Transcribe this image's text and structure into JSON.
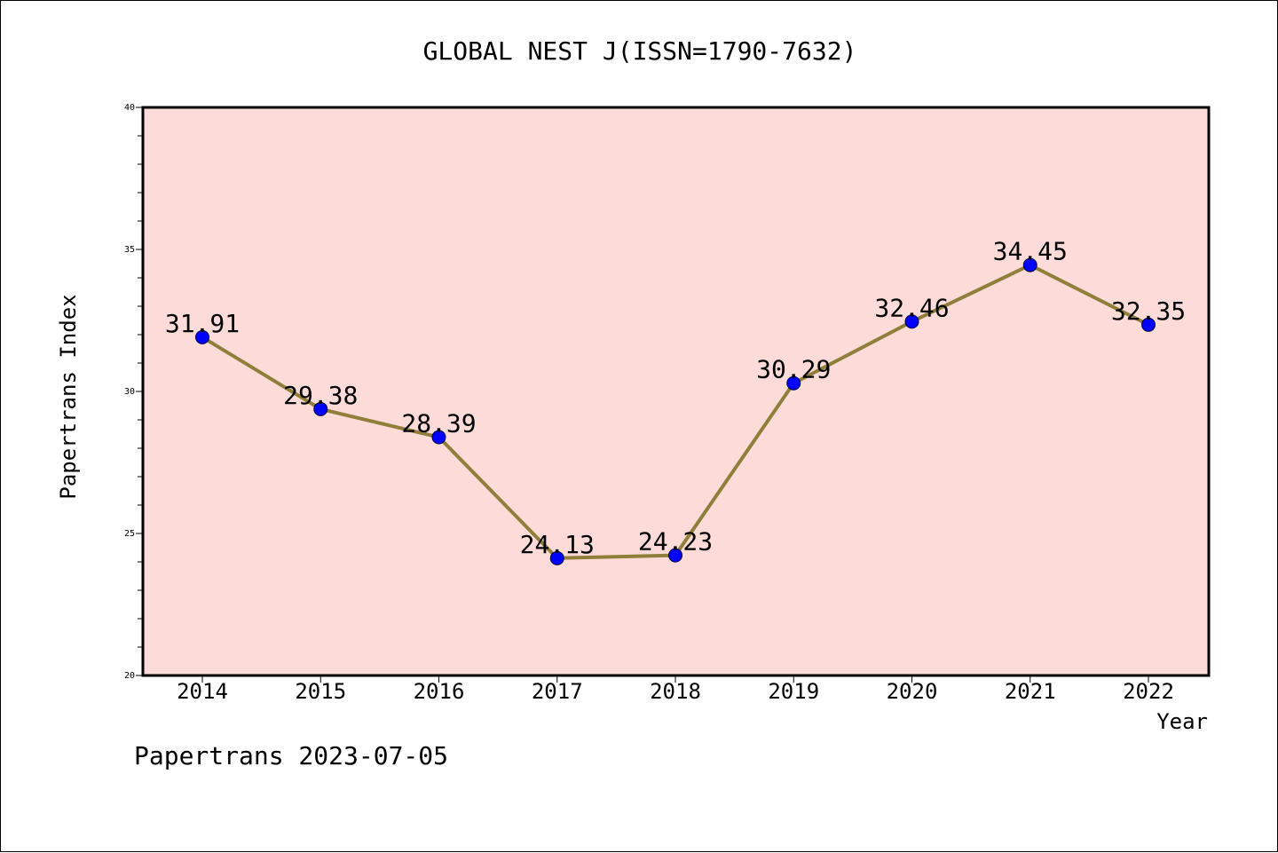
{
  "chart_data": {
    "type": "line",
    "title": "GLOBAL NEST J(ISSN=1790-7632)",
    "xlabel": "Year",
    "ylabel": "Papertrans Index",
    "categories": [
      "2014",
      "2015",
      "2016",
      "2017",
      "2018",
      "2019",
      "2020",
      "2021",
      "2022"
    ],
    "values": [
      31.91,
      29.38,
      28.39,
      24.13,
      24.23,
      30.29,
      32.46,
      34.45,
      32.35
    ],
    "value_labels": [
      "31.91",
      "29.38",
      "28.39",
      "24.13",
      "24.23",
      "30.29",
      "32.46",
      "34.45",
      "32.35"
    ],
    "ylim": [
      20,
      40
    ],
    "y_ticks": [
      "20",
      "25",
      "30",
      "35",
      "40"
    ],
    "grid": false,
    "legend": "none",
    "colors": {
      "plot_background": "#fddbd8",
      "line": "#8f7f3a",
      "marker": "#0000ff",
      "axis": "#000000"
    }
  },
  "footer": {
    "text": "Papertrans 2023-07-05"
  }
}
